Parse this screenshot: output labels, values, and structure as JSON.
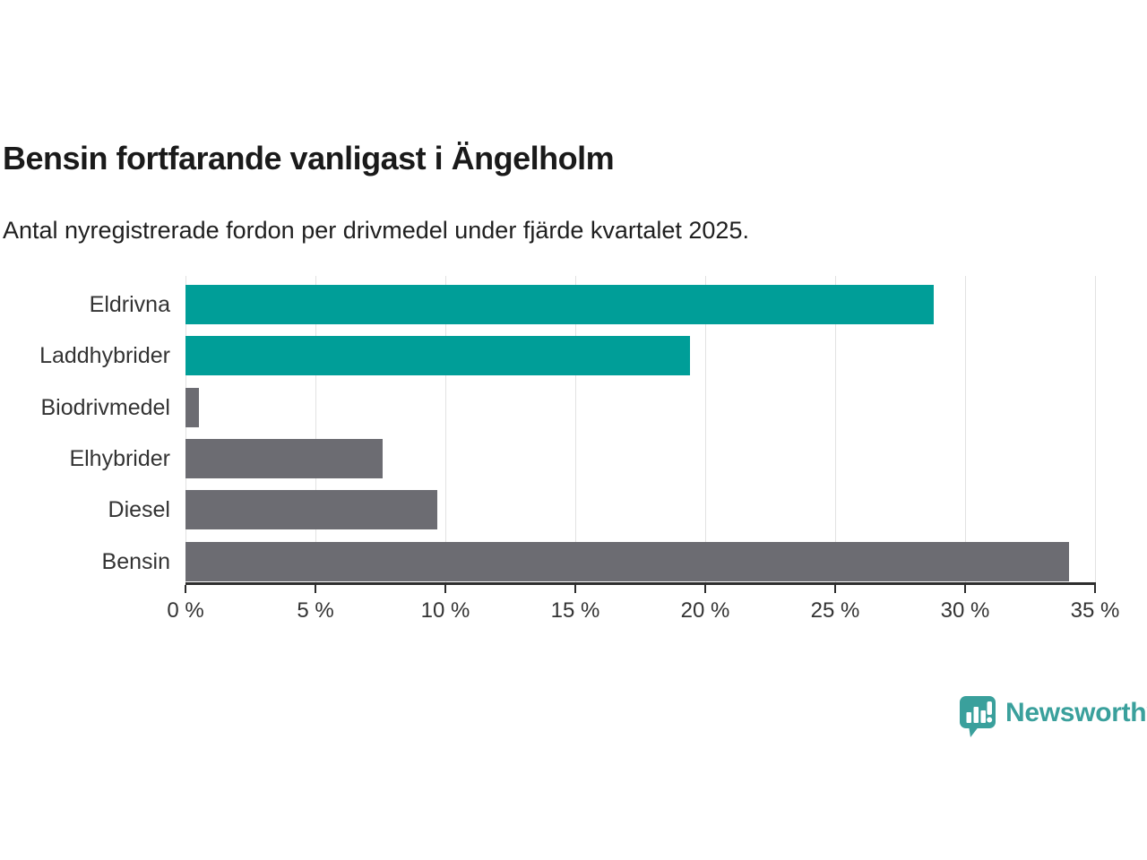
{
  "header": {
    "title": "Bensin fortfarande vanligast i Ängelholm",
    "subtitle": "Antal nyregistrerade fordon per drivmedel under fjärde kvartalet 2025."
  },
  "chart_data": {
    "type": "bar",
    "orientation": "horizontal",
    "title": "Bensin fortfarande vanligast i Ängelholm",
    "xlabel": "",
    "ylabel": "",
    "categories": [
      "Eldrivna",
      "Laddhybrider",
      "Biodrivmedel",
      "Elhybrider",
      "Diesel",
      "Bensin"
    ],
    "values": [
      28.8,
      19.4,
      0.5,
      7.6,
      9.7,
      34.0
    ],
    "unit": "%",
    "bar_colors": [
      "#009e98",
      "#009e98",
      "#6c6c72",
      "#6c6c72",
      "#6c6c72",
      "#6c6c72"
    ],
    "accent_color": "#009e98",
    "neutral_color": "#6c6c72",
    "xlim": [
      0,
      35
    ],
    "x_ticks": [
      0,
      5,
      10,
      15,
      20,
      25,
      30,
      35
    ],
    "x_tick_suffix": " %",
    "grid": true,
    "gridline_color": "#e2e2e2",
    "axis_color": "#2d2d2d",
    "legend": "none"
  },
  "branding": {
    "logo_text": "Newsworthy",
    "logo_color": "#3aa09c"
  }
}
